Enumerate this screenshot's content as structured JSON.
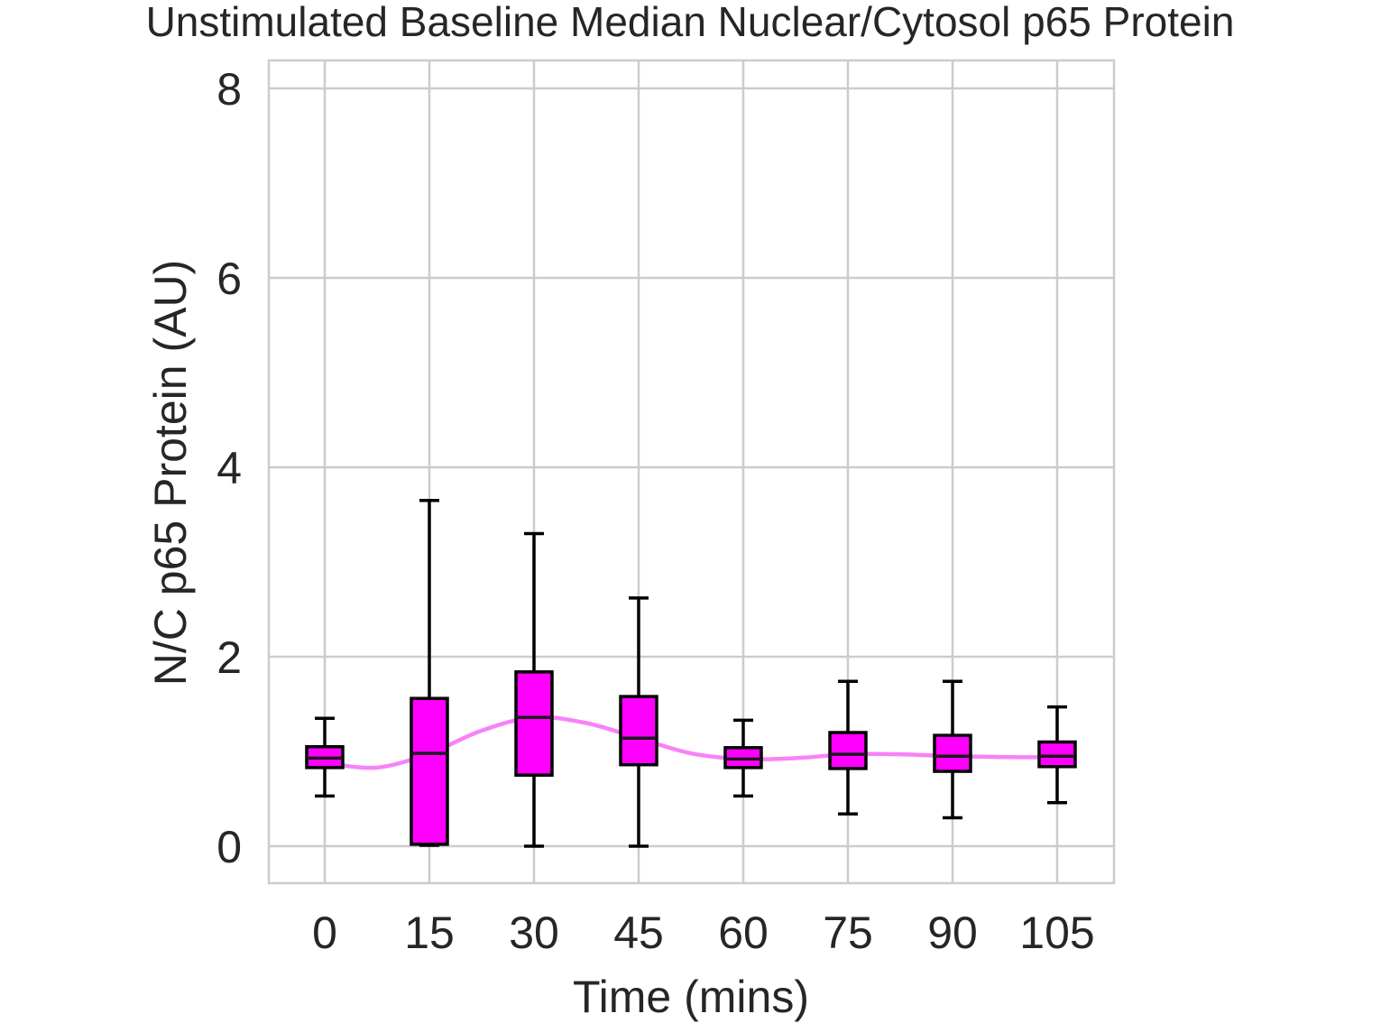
{
  "chart_data": {
    "type": "box",
    "title": "Unstimulated Baseline Median Nuclear/Cytosol p65 Protein",
    "xlabel": "Time (mins)",
    "ylabel": "N/C p65 Protein (AU)",
    "ylim": [
      -0.4,
      8.3
    ],
    "y_ticks": [
      0,
      2,
      4,
      6,
      8
    ],
    "grid": true,
    "categories": [
      "0",
      "15",
      "30",
      "45",
      "60",
      "75",
      "90",
      "105"
    ],
    "boxes": [
      {
        "category": "0",
        "whisker_low": 0.53,
        "q1": 0.83,
        "median": 0.93,
        "q3": 1.05,
        "whisker_high": 1.35
      },
      {
        "category": "15",
        "whisker_low": 0.01,
        "q1": 0.02,
        "median": 0.98,
        "q3": 1.56,
        "whisker_high": 3.65
      },
      {
        "category": "30",
        "whisker_low": 0.0,
        "q1": 0.75,
        "median": 1.36,
        "q3": 1.84,
        "whisker_high": 3.3
      },
      {
        "category": "45",
        "whisker_low": 0.0,
        "q1": 0.86,
        "median": 1.14,
        "q3": 1.58,
        "whisker_high": 2.62
      },
      {
        "category": "60",
        "whisker_low": 0.53,
        "q1": 0.83,
        "median": 0.92,
        "q3": 1.04,
        "whisker_high": 1.33
      },
      {
        "category": "75",
        "whisker_low": 0.34,
        "q1": 0.82,
        "median": 0.97,
        "q3": 1.2,
        "whisker_high": 1.74
      },
      {
        "category": "90",
        "whisker_low": 0.3,
        "q1": 0.79,
        "median": 0.95,
        "q3": 1.17,
        "whisker_high": 1.74
      },
      {
        "category": "105",
        "whisker_low": 0.46,
        "q1": 0.84,
        "median": 0.95,
        "q3": 1.1,
        "whisker_high": 1.47
      }
    ],
    "trend_line": {
      "x": [
        0,
        7.5,
        15,
        22.5,
        30,
        37.5,
        45,
        52.5,
        60,
        67.5,
        75,
        82.5,
        90,
        97.5,
        105
      ],
      "y": [
        0.88,
        0.83,
        0.98,
        1.22,
        1.36,
        1.3,
        1.14,
        0.98,
        0.92,
        0.93,
        0.97,
        0.97,
        0.95,
        0.94,
        0.94
      ]
    },
    "colors": {
      "box_fill": "#ff00ff",
      "box_edge": "#000000",
      "trend_line": "#f882f8",
      "grid": "#cccccc",
      "background": "#ffffff"
    }
  }
}
